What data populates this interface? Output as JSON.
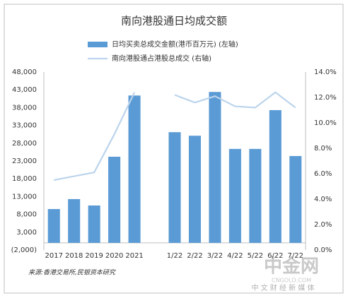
{
  "chart_data": {
    "type": "bar",
    "title": "南向港股通日均成交额",
    "categories": [
      "2017",
      "2018",
      "2019",
      "2020",
      "2021",
      null,
      "1/22",
      "2/22",
      "3/22",
      "4/22",
      "5/22",
      "6/22",
      "7/22"
    ],
    "series": [
      {
        "name": "日均买卖总成交金额(港币百万元) (左轴)",
        "type": "bar",
        "color": "#5b9bd5",
        "values": [
          9500,
          12300,
          10500,
          24200,
          41400,
          null,
          31100,
          30100,
          42400,
          26400,
          26400,
          37300,
          24400
        ]
      },
      {
        "name": "南向港股通占港股总成交 (右轴)",
        "type": "line",
        "axis": "y2",
        "color": "#bcd4ec",
        "values": [
          5.5,
          5.8,
          6.1,
          9.1,
          12.4,
          null,
          12.2,
          11.6,
          12.1,
          11.3,
          11.2,
          12.4,
          11.2
        ]
      }
    ],
    "ylim": [
      -2000,
      48000
    ],
    "yticks": [
      {
        "value": -2000,
        "label": "(2,000)"
      },
      {
        "value": 3000,
        "label": "3,000"
      },
      {
        "value": 8000,
        "label": "8,000"
      },
      {
        "value": 13000,
        "label": "13,000"
      },
      {
        "value": 18000,
        "label": "18,000"
      },
      {
        "value": 23000,
        "label": "23,000"
      },
      {
        "value": 28000,
        "label": "28,000"
      },
      {
        "value": 33000,
        "label": "33,000"
      },
      {
        "value": 38000,
        "label": "38,000"
      },
      {
        "value": 43000,
        "label": "43,000"
      },
      {
        "value": 48000,
        "label": "48,000"
      }
    ],
    "y2lim": [
      0,
      14
    ],
    "y2ticks": [
      {
        "value": 0,
        "label": "0.0%"
      },
      {
        "value": 2,
        "label": "2.0%"
      },
      {
        "value": 4,
        "label": "4.0%"
      },
      {
        "value": 6,
        "label": "6.0%"
      },
      {
        "value": 8,
        "label": "8.0%"
      },
      {
        "value": 10,
        "label": "10.0%"
      },
      {
        "value": 12,
        "label": "12.0%"
      },
      {
        "value": 14,
        "label": "14.0%"
      }
    ],
    "grid": false,
    "source": "来源:香港交易所,民银资本研究",
    "watermark": [
      "中金网",
      "CNGOLD.COM",
      "中 文 财 经 新 媒 体"
    ]
  }
}
